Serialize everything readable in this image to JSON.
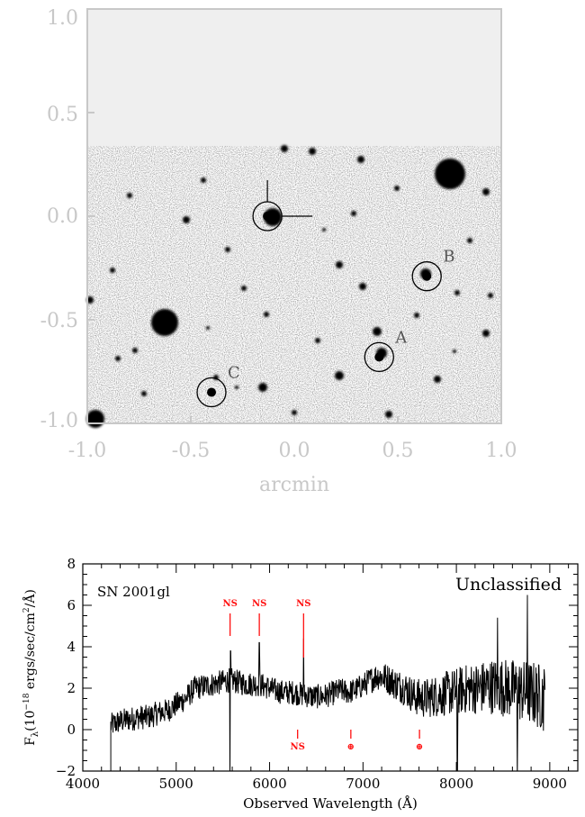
{
  "finding_chart": {
    "x_axis_label": "arcmin",
    "x_ticks": [
      "-1.0",
      "-0.5",
      "0.0",
      "0.5",
      "1.0"
    ],
    "y_ticks": [
      "1.0",
      "0.5",
      "0.0",
      "-0.5",
      "-1.0"
    ],
    "x_range": [
      -1.0,
      1.0
    ],
    "y_range": [
      -1.0,
      1.0
    ],
    "markers": [
      {
        "label": "",
        "x": -0.13,
        "y": 0.0
      },
      {
        "label": "B",
        "x": 0.64,
        "y": -0.29
      },
      {
        "label": "A",
        "x": 0.41,
        "y": -0.68
      },
      {
        "label": "C",
        "x": -0.4,
        "y": -0.85
      }
    ],
    "background_color": "#efefef"
  },
  "chart_data": {
    "type": "line",
    "title": "SN 2001gl",
    "classification": "Unclassified",
    "xlabel": "Observed Wavelength (Å)",
    "ylabel": "F",
    "ylabel_subscript": "λ",
    "ylabel_units_prefix": "(10",
    "ylabel_exponent": "−18",
    "ylabel_units_mid": " ergs/sec/cm",
    "ylabel_units_sq": "2",
    "ylabel_units_suffix": "/Å)",
    "xlim": [
      4000,
      9300
    ],
    "ylim": [
      -2,
      8
    ],
    "x_ticks": [
      4000,
      5000,
      6000,
      7000,
      8000,
      9000
    ],
    "y_ticks": [
      -2,
      0,
      2,
      4,
      6,
      8
    ],
    "x_tick_labels": [
      "4000",
      "5000",
      "6000",
      "7000",
      "8000",
      "9000"
    ],
    "y_tick_labels": [
      "−2",
      "0",
      "2",
      "4",
      "6",
      "8"
    ],
    "line_color": "#000000",
    "annotation_color": "#ff1010",
    "series": [
      {
        "x": [
          4300,
          4400,
          4500,
          4600,
          4700,
          4800,
          4900,
          5000,
          5100,
          5200,
          5300,
          5400,
          5500,
          5580,
          5650,
          5750,
          5850,
          5950,
          6050,
          6150,
          6250,
          6350,
          6450,
          6550,
          6650,
          6750,
          6850,
          6950,
          7050,
          7150,
          7250,
          7350,
          7450,
          7550,
          7650,
          7750,
          7850,
          7950,
          8050,
          8150,
          8250,
          8350,
          8450,
          8550,
          8650,
          8750,
          8850,
          8950
        ],
        "y": [
          0.2,
          0.4,
          0.5,
          0.6,
          0.6,
          0.8,
          0.9,
          1.2,
          1.5,
          2.0,
          2.1,
          2.2,
          2.3,
          2.4,
          2.3,
          2.2,
          2.2,
          2.1,
          1.9,
          1.8,
          1.8,
          1.7,
          1.6,
          1.6,
          1.7,
          1.9,
          1.8,
          2.0,
          2.3,
          2.6,
          2.5,
          2.2,
          2.0,
          1.6,
          1.5,
          1.6,
          1.7,
          1.8,
          1.9,
          2.0,
          2.0,
          2.1,
          2.1,
          2.0,
          1.9,
          1.8,
          1.7,
          1.5
        ]
      }
    ],
    "annotations_above": [
      {
        "label": "NS",
        "x": 5577
      },
      {
        "label": "NS",
        "x": 5890
      },
      {
        "label": "NS",
        "x": 6364
      }
    ],
    "annotations_below": [
      {
        "label": "NS",
        "x": 6300
      },
      {
        "label": "⊕",
        "x": 6870
      },
      {
        "label": "⊕",
        "x": 7605
      }
    ]
  }
}
